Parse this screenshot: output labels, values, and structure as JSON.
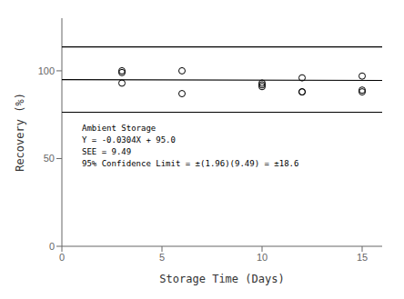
{
  "chart_data": {
    "type": "scatter",
    "xlabel": "Storage Time (Days)",
    "ylabel": "Recovery (%)",
    "xlim": [
      0,
      16
    ],
    "ylim": [
      0,
      130
    ],
    "xticks": [
      0,
      5,
      10,
      15
    ],
    "yticks": [
      0,
      50,
      100
    ],
    "annotations": [
      {
        "x": 1.0,
        "y": 44,
        "lines": [
          "Ambient Storage",
          "Y = -0.0304X + 95.0",
          "SEE = 9.49",
          "95% Confidence Limit = ±(1.96)(9.49) = ±18.6"
        ]
      }
    ],
    "series": [
      {
        "type": "scatter",
        "marker": "circle_open",
        "color": "#000000",
        "x": [
          3,
          3,
          3,
          6,
          6,
          10,
          10,
          10,
          12,
          12,
          12,
          15,
          15,
          15
        ],
        "values": [
          99,
          100,
          93,
          100,
          87,
          93,
          92,
          91,
          96,
          88,
          88,
          97,
          88,
          89
        ]
      },
      {
        "type": "line",
        "color": "#000000",
        "x": [
          0,
          16
        ],
        "values": [
          95.0,
          94.5136
        ]
      },
      {
        "type": "line",
        "color": "#000000",
        "x": [
          0,
          16
        ],
        "values": [
          113.6,
          113.6
        ]
      },
      {
        "type": "line",
        "color": "#000000",
        "x": [
          0,
          16
        ],
        "values": [
          76.4,
          76.4
        ]
      }
    ]
  }
}
